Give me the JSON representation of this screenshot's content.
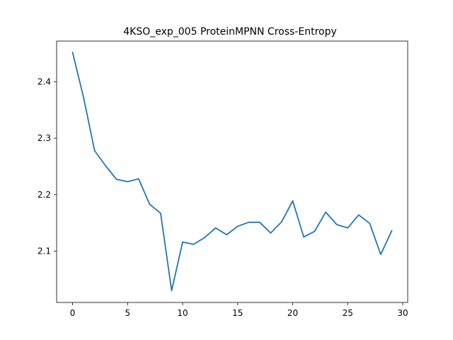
{
  "chart_data": {
    "type": "line",
    "title": "4KSO_exp_005 ProteinMPNN Cross-Entropy",
    "xlabel": "",
    "ylabel": "",
    "xlim": [
      -1.45,
      30.45
    ],
    "ylim": [
      2.009,
      2.472
    ],
    "xticks": [
      0,
      5,
      10,
      15,
      20,
      25,
      30
    ],
    "xtick_labels": [
      "0",
      "5",
      "10",
      "15",
      "20",
      "25",
      "30"
    ],
    "yticks": [
      2.1,
      2.2,
      2.3,
      2.4
    ],
    "ytick_labels": [
      "2.1",
      "2.2",
      "2.3",
      "2.4"
    ],
    "grid": false,
    "series": [
      {
        "color": "#1f77b4",
        "x": [
          0,
          1,
          2,
          3,
          4,
          5,
          6,
          7,
          8,
          9,
          10,
          11,
          12,
          13,
          14,
          15,
          16,
          17,
          18,
          19,
          20,
          21,
          22,
          23,
          24,
          25,
          26,
          27,
          28,
          29
        ],
        "y": [
          2.452,
          2.372,
          2.278,
          2.251,
          2.227,
          2.223,
          2.228,
          2.183,
          2.167,
          2.03,
          2.116,
          2.112,
          2.124,
          2.141,
          2.129,
          2.144,
          2.151,
          2.151,
          2.132,
          2.152,
          2.189,
          2.125,
          2.135,
          2.169,
          2.147,
          2.141,
          2.164,
          2.149,
          2.094,
          2.136
        ]
      }
    ]
  }
}
